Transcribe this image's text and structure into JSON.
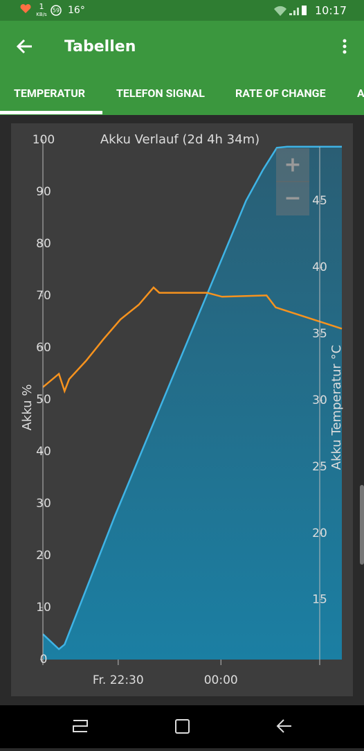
{
  "status": {
    "speed": "1",
    "speed_unit": "KB/s",
    "badge": "59",
    "weather": "16°",
    "time": "10:17"
  },
  "app_bar": {
    "title": "Tabellen"
  },
  "tabs": [
    "TEMPERATUR",
    "TELEFON SIGNAL",
    "RATE OF CHANGE",
    "A"
  ],
  "zoom": {
    "in": "+",
    "out": "−"
  },
  "chart_data": {
    "type": "line",
    "title": "Akku Verlauf (2d 4h 34m)",
    "y_label": "Akku %",
    "y2_label": "Akku Temperatur °C",
    "xlim": [
      "21:24",
      "01:46"
    ],
    "xticks": [
      {
        "value": "22:30",
        "label": "Fr. 22:30"
      },
      "00:00"
    ],
    "ylim": [
      0,
      100
    ],
    "yticks": [
      0,
      10,
      20,
      30,
      40,
      50,
      60,
      70,
      80,
      90,
      100
    ],
    "y2lim": [
      10.5,
      49.6
    ],
    "y2ticks": [
      15,
      20,
      25,
      30,
      35,
      40,
      45
    ],
    "series": [
      {
        "color": "#3fb4e6",
        "area": true,
        "x": [
          "21:24",
          "21:38",
          "21:43",
          "22:27",
          "23:20",
          "00:22",
          "00:37",
          "00:49",
          "00:58",
          "01:46"
        ],
        "values": [
          4.9,
          2.0,
          2.9,
          27.6,
          55.6,
          88.3,
          94.3,
          98.5,
          98.7,
          98.7
        ]
      },
      {
        "color": "#f7931e",
        "axis": "y2",
        "x": [
          "21:24",
          "21:38",
          "21:43",
          "21:47",
          "22:02",
          "22:17",
          "22:32",
          "22:48",
          "23:01",
          "23:06",
          "23:48",
          "00:01",
          "00:40",
          "00:48",
          "01:46"
        ],
        "values": [
          31.0,
          32.0,
          30.7,
          31.6,
          33.0,
          34.6,
          36.1,
          37.2,
          38.5,
          38.1,
          38.1,
          37.8,
          37.9,
          37.0,
          35.4
        ]
      }
    ]
  }
}
